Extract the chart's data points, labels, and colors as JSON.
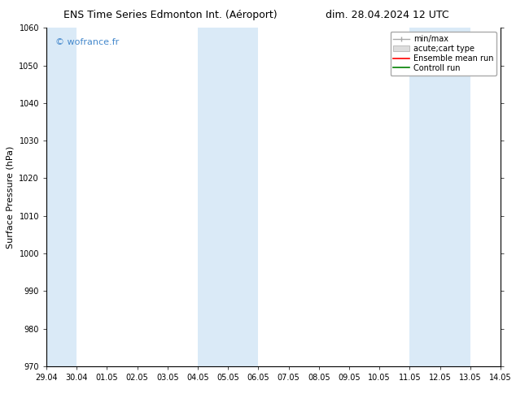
{
  "title_left": "ENS Time Series Edmonton Int. (Aéroport)",
  "title_right": "dim. 28.04.2024 12 UTC",
  "ylabel": "Surface Pressure (hPa)",
  "watermark": "© wofrance.fr",
  "ylim": [
    970,
    1060
  ],
  "yticks": [
    970,
    980,
    990,
    1000,
    1010,
    1020,
    1030,
    1040,
    1050,
    1060
  ],
  "x_labels": [
    "29.04",
    "30.04",
    "01.05",
    "02.05",
    "03.05",
    "04.05",
    "05.05",
    "06.05",
    "07.05",
    "08.05",
    "09.05",
    "10.05",
    "11.05",
    "12.05",
    "13.05",
    "14.05"
  ],
  "x_values": [
    0,
    1,
    2,
    3,
    4,
    5,
    6,
    7,
    8,
    9,
    10,
    11,
    12,
    13,
    14,
    15
  ],
  "shaded_bands": [
    {
      "xmin": 0,
      "xmax": 1
    },
    {
      "xmin": 5,
      "xmax": 7
    },
    {
      "xmin": 12,
      "xmax": 14
    }
  ],
  "legend_entries": [
    {
      "label": "min/max",
      "color": "#aaaaaa",
      "lw": 1.2
    },
    {
      "label": "acute;cart type",
      "color": "#cccccc",
      "lw": 6
    },
    {
      "label": "Ensemble mean run",
      "color": "red",
      "lw": 1.2
    },
    {
      "label": "Controll run",
      "color": "green",
      "lw": 1.2
    }
  ],
  "bg_color": "#ffffff",
  "plot_bg_color": "#ffffff",
  "shaded_color": "#daeaf7",
  "watermark_color": "#4488cc",
  "title_fontsize": 9,
  "tick_fontsize": 7,
  "ylabel_fontsize": 8,
  "legend_fontsize": 7
}
